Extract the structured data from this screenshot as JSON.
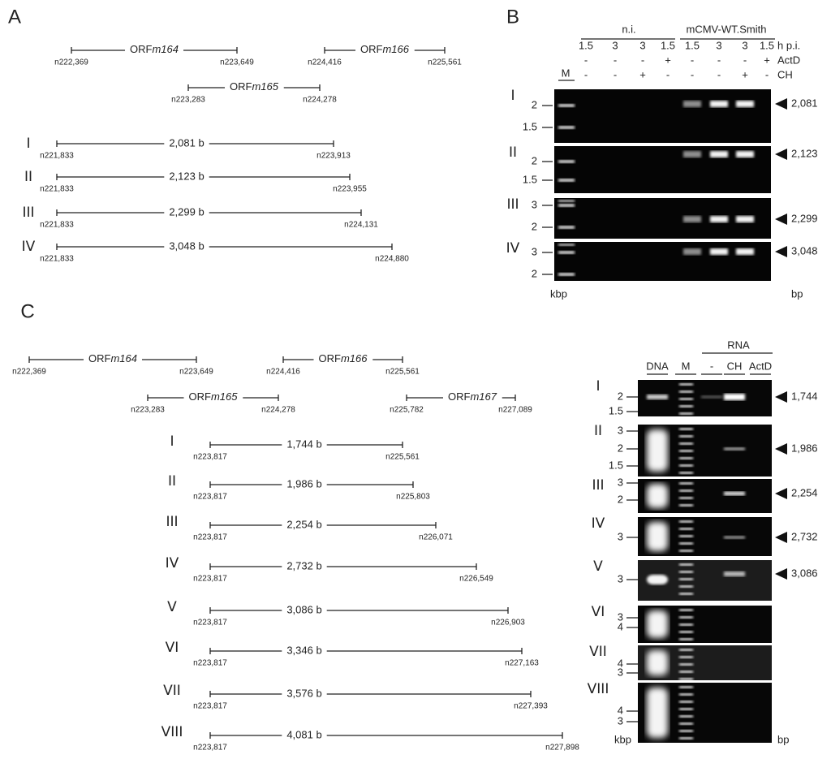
{
  "panel_a": {
    "label": "A",
    "orfs": [
      {
        "prefix": "ORF",
        "name": "m164",
        "start": "n222,369",
        "end": "n223,649"
      },
      {
        "prefix": "ORF",
        "name": "m166",
        "start": "n224,416",
        "end": "n225,561"
      },
      {
        "prefix": "ORF",
        "name": "m165",
        "start": "n223,283",
        "end": "n224,278"
      }
    ],
    "amplicons": [
      {
        "id": "I",
        "size": "2,081 b",
        "start": "n221,833",
        "end": "n223,913"
      },
      {
        "id": "II",
        "size": "2,123 b",
        "start": "n221,833",
        "end": "n223,955"
      },
      {
        "id": "III",
        "size": "2,299 b",
        "start": "n221,833",
        "end": "n224,131"
      },
      {
        "id": "IV",
        "size": "3,048 b",
        "start": "n221,833",
        "end": "n224,880"
      }
    ]
  },
  "panel_b": {
    "label": "B",
    "groups": [
      "n.i.",
      "mCMV-WT.Smith"
    ],
    "row_labels": [
      "h p.i.",
      "ActD",
      "CH"
    ],
    "times": [
      "1.5",
      "3",
      "3",
      "1.5",
      "1.5",
      "3",
      "3",
      "1.5"
    ],
    "actd": [
      "-",
      "-",
      "-",
      "+",
      "-",
      "-",
      "-",
      "+"
    ],
    "ch": [
      "-",
      "-",
      "+",
      "-",
      "-",
      "-",
      "+",
      "-"
    ],
    "marker": "M",
    "gels": [
      {
        "id": "I",
        "ladder": [
          "2",
          "1.5"
        ],
        "size": "2,081"
      },
      {
        "id": "II",
        "ladder": [
          "2",
          "1.5"
        ],
        "size": "2,123"
      },
      {
        "id": "III",
        "ladder": [
          "3",
          "2"
        ],
        "size": "2,299"
      },
      {
        "id": "IV",
        "ladder": [
          "3",
          "2"
        ],
        "size": "3,048"
      }
    ],
    "left_unit": "kbp",
    "right_unit": "bp"
  },
  "panel_c": {
    "label": "C",
    "orfs": [
      {
        "prefix": "ORF",
        "name": "m164",
        "start": "n222,369",
        "end": "n223,649"
      },
      {
        "prefix": "ORF",
        "name": "m166",
        "start": "n224,416",
        "end": "n225,561"
      },
      {
        "prefix": "ORF",
        "name": "m165",
        "start": "n223,283",
        "end": "n224,278"
      },
      {
        "prefix": "ORF",
        "name": "m167",
        "start": "n225,782",
        "end": "n227,089"
      }
    ],
    "amplicons": [
      {
        "id": "I",
        "size": "1,744 b",
        "start": "n223,817",
        "end": "n225,561"
      },
      {
        "id": "II",
        "size": "1,986 b",
        "start": "n223,817",
        "end": "n225,803"
      },
      {
        "id": "III",
        "size": "2,254 b",
        "start": "n223,817",
        "end": "n226,071"
      },
      {
        "id": "IV",
        "size": "2,732 b",
        "start": "n223,817",
        "end": "n226,549"
      },
      {
        "id": "V",
        "size": "3,086 b",
        "start": "n223,817",
        "end": "n226,903"
      },
      {
        "id": "VI",
        "size": "3,346 b",
        "start": "n223,817",
        "end": "n227,163"
      },
      {
        "id": "VII",
        "size": "3,576 b",
        "start": "n223,817",
        "end": "n227,393"
      },
      {
        "id": "VIII",
        "size": "4,081 b",
        "start": "n223,817",
        "end": "n227,898"
      }
    ],
    "gel": {
      "group": "RNA",
      "lanes": [
        "DNA",
        "M",
        "-",
        "CH",
        "ActD"
      ],
      "gels": [
        {
          "id": "I",
          "ladder": [
            "2",
            "1.5"
          ],
          "size": "1,744"
        },
        {
          "id": "II",
          "ladder": [
            "3",
            "2",
            "1.5"
          ],
          "size": "1,986"
        },
        {
          "id": "III",
          "ladder": [
            "3",
            "2"
          ],
          "size": "2,254"
        },
        {
          "id": "IV",
          "ladder": [
            "3"
          ],
          "size": "2,732"
        },
        {
          "id": "V",
          "ladder": [
            "3"
          ],
          "size": "3,086"
        },
        {
          "id": "VI",
          "ladder": [
            "4",
            "3"
          ]
        },
        {
          "id": "VII",
          "ladder": [
            "4",
            "3"
          ]
        },
        {
          "id": "VIII",
          "ladder": [
            "4",
            "3"
          ]
        }
      ],
      "left_unit": "kbp",
      "right_unit": "bp"
    }
  }
}
